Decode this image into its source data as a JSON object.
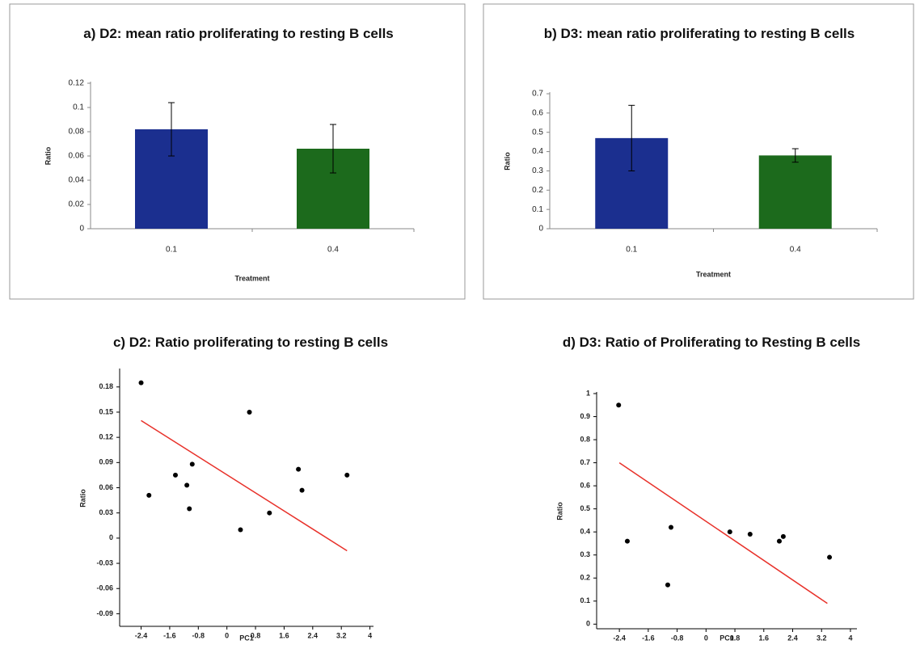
{
  "chart_data": [
    {
      "type": "bar",
      "title": "a) D2: mean ratio proliferating to resting B cells",
      "x_label": "Treatment",
      "y_label": "Ratio",
      "categories": [
        "0.1",
        "0.4"
      ],
      "values": [
        0.082,
        0.066
      ],
      "errors": [
        0.022,
        0.02
      ],
      "colors": [
        "#1b2f8f",
        "#1c6a1c"
      ],
      "ylim": [
        0,
        0.12
      ],
      "yticks": [
        0,
        0.02,
        0.04,
        0.06,
        0.08,
        0.1,
        0.12
      ]
    },
    {
      "type": "bar",
      "title": "b) D3: mean ratio proliferating to resting B cells",
      "x_label": "Treatment",
      "y_label": "Ratio",
      "categories": [
        "0.1",
        "0.4"
      ],
      "values": [
        0.47,
        0.38
      ],
      "errors": [
        0.17,
        0.035
      ],
      "colors": [
        "#1b2f8f",
        "#1c6a1c"
      ],
      "ylim": [
        0,
        0.7
      ],
      "yticks": [
        0,
        0.1,
        0.2,
        0.3,
        0.4,
        0.5,
        0.6,
        0.7
      ]
    },
    {
      "type": "scatter",
      "title": "c) D2: Ratio proliferating to resting B cells",
      "x_label": "PC1",
      "y_label": "Ratio",
      "x": [
        -2.4,
        -2.18,
        -1.44,
        -1.12,
        -0.97,
        -1.05,
        0.38,
        0.63,
        1.19,
        2.0,
        2.1,
        3.36
      ],
      "y": [
        0.185,
        0.051,
        0.075,
        0.063,
        0.088,
        0.035,
        0.01,
        0.15,
        0.03,
        0.082,
        0.057,
        0.075
      ],
      "color": "#000000",
      "fit_line": {
        "x": [
          -2.4,
          3.36
        ],
        "y": [
          0.14,
          -0.015
        ],
        "color": "#e8312a"
      },
      "xlim": [
        -3.0,
        4.1
      ],
      "xticks": [
        -2.4,
        -1.6,
        -0.8,
        0,
        0.8,
        1.6,
        2.4,
        3.2,
        4
      ],
      "ylim": [
        -0.105,
        0.2
      ],
      "yticks": [
        -0.09,
        -0.06,
        -0.03,
        0,
        0.03,
        0.06,
        0.09,
        0.12,
        0.15,
        0.18
      ]
    },
    {
      "type": "scatter",
      "title": "d) D3: Ratio of Proliferating to Resting B cells",
      "x_label": "PC1",
      "y_label": "Ratio",
      "x": [
        -2.42,
        -2.18,
        -0.97,
        -1.06,
        0.66,
        1.22,
        2.03,
        2.14,
        3.42
      ],
      "y": [
        0.95,
        0.36,
        0.42,
        0.17,
        0.4,
        0.39,
        0.36,
        0.38,
        0.29
      ],
      "color": "#000000",
      "fit_line": {
        "x": [
          -2.4,
          3.36
        ],
        "y": [
          0.7,
          0.09
        ],
        "color": "#e8312a"
      },
      "xlim": [
        -3.03,
        4.18
      ],
      "xticks": [
        -2.4,
        -1.6,
        -0.8,
        0,
        0.8,
        1.6,
        2.4,
        3.2,
        4
      ],
      "ylim": [
        -0.02,
        1.0
      ],
      "yticks": [
        0,
        0.1,
        0.2,
        0.3,
        0.4,
        0.5,
        0.6,
        0.7,
        0.8,
        0.9,
        1
      ]
    }
  ]
}
